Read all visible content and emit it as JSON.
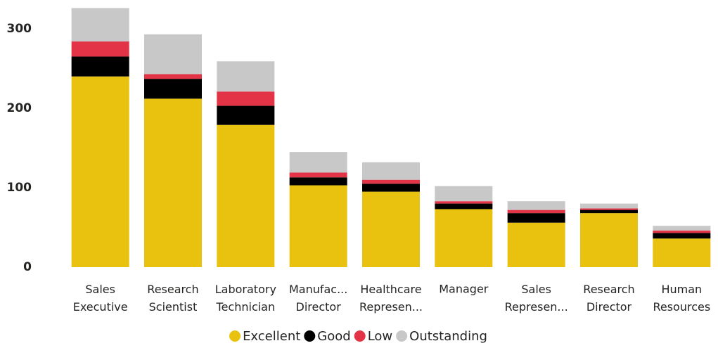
{
  "chart_data": {
    "type": "stacked_bar",
    "categories": [
      "Sales Executive",
      "Research Scientist",
      "Laboratory Technician",
      "Manufac... Director",
      "Healthcare Represen...",
      "Manager",
      "Sales Represen...",
      "Research Director",
      "Human Resources"
    ],
    "series": [
      {
        "name": "Excellent",
        "color": "#e8c20e",
        "values": [
          240,
          212,
          179,
          103,
          95,
          73,
          56,
          68,
          36
        ]
      },
      {
        "name": "Good",
        "color": "#000000",
        "values": [
          25,
          25,
          24,
          10,
          10,
          7,
          12,
          4,
          7
        ]
      },
      {
        "name": "Low",
        "color": "#e23446",
        "values": [
          19,
          6,
          18,
          6,
          5,
          3,
          4,
          2,
          3
        ]
      },
      {
        "name": "Outstanding",
        "color": "#c8c8c8",
        "values": [
          42,
          50,
          38,
          26,
          22,
          19,
          11,
          6,
          6
        ]
      }
    ],
    "ylim": [
      0,
      330
    ],
    "yticks": [
      0,
      100,
      200,
      300
    ],
    "grid": false,
    "legend": "bottom"
  }
}
